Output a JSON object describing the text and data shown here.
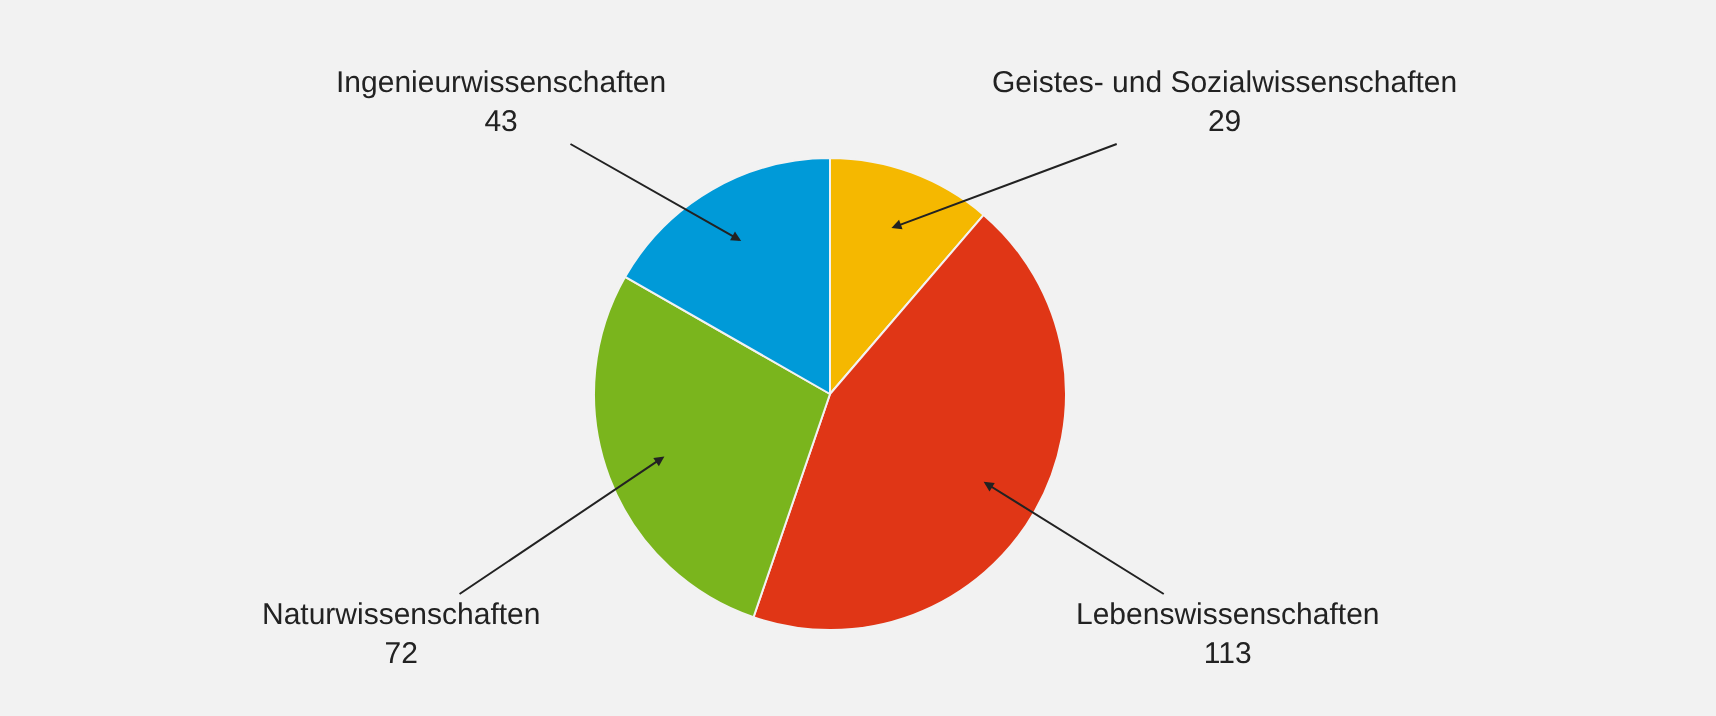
{
  "chart_data": {
    "type": "pie",
    "categories": [
      "Geistes- und Sozialwissenschaften",
      "Lebenswissenschaften",
      "Naturwissenschaften",
      "Ingenieurwissenschaften"
    ],
    "values": [
      29,
      113,
      72,
      43
    ],
    "colors": [
      "#f5b800",
      "#e03616",
      "#7ab51d",
      "#009ad8"
    ],
    "data_labels": true,
    "legend": false
  }
}
